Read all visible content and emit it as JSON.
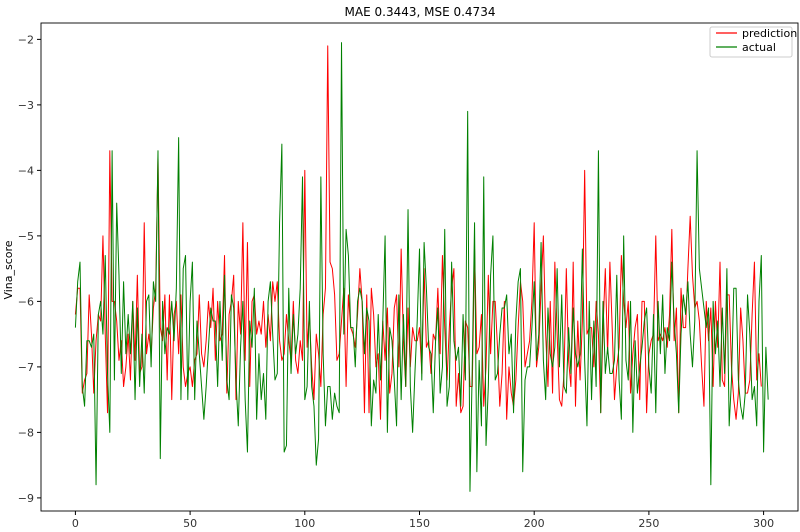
{
  "chart_data": {
    "type": "line",
    "title": "MAE 0.3443, MSE 0.4734",
    "xlabel": "",
    "ylabel": "Vina_score",
    "xlim": [
      -15,
      315
    ],
    "ylim": [
      -9.2,
      -1.75
    ],
    "x_ticks": [
      0,
      50,
      100,
      150,
      200,
      250,
      300
    ],
    "y_ticks": [
      -2,
      -3,
      -4,
      -5,
      -6,
      -7,
      -8,
      -9
    ],
    "legend_position": "top-right",
    "grid": false,
    "series": [
      {
        "name": "prediction",
        "color": "#ff0000",
        "values": [
          -6.2,
          -5.8,
          -5.8,
          -7.4,
          -7.2,
          -7.1,
          -5.9,
          -6.5,
          -7.4,
          -6.6,
          -6.2,
          -6.3,
          -5.0,
          -6.5,
          -7.7,
          -3.7,
          -6.0,
          -6.0,
          -6.3,
          -6.9,
          -6.6,
          -7.3,
          -7.0,
          -6.5,
          -7.2,
          -6.0,
          -6.9,
          -5.6,
          -7.1,
          -7.0,
          -4.8,
          -6.8,
          -6.5,
          -6.8,
          -6.1,
          -5.8,
          -3.8,
          -6.4,
          -6.6,
          -5.9,
          -7.2,
          -5.9,
          -7.5,
          -6.2,
          -6.0,
          -6.8,
          -5.9,
          -7.0,
          -7.3,
          -7.1,
          -7.0,
          -7.3,
          -6.9,
          -6.8,
          -5.9,
          -6.8,
          -7.0,
          -6.6,
          -6.0,
          -6.4,
          -5.8,
          -6.9,
          -6.0,
          -6.6,
          -6.5,
          -5.3,
          -7.4,
          -6.2,
          -6.0,
          -5.6,
          -7.5,
          -6.0,
          -6.5,
          -4.8,
          -6.9,
          -5.1,
          -7.3,
          -6.0,
          -5.9,
          -6.5,
          -6.3,
          -6.5,
          -6.0,
          -6.7,
          -6.2,
          -6.6,
          -5.7,
          -6.0,
          -5.7,
          -6.6,
          -6.9,
          -6.8,
          -6.2,
          -6.6,
          -6.9,
          -6.0,
          -6.9,
          -7.1,
          -6.6,
          -6.9,
          -4.0,
          -6.7,
          -6.2,
          -7.0,
          -7.5,
          -6.5,
          -6.8,
          -7.3,
          -6.2,
          -5.8,
          -2.1,
          -5.4,
          -5.5,
          -5.9,
          -6.9,
          -6.8,
          -6.3,
          -5.8,
          -7.3,
          -5.9,
          -6.4,
          -6.5,
          -6.7,
          -6.2,
          -5.5,
          -6.0,
          -7.7,
          -5.9,
          -7.7,
          -5.8,
          -6.2,
          -7.0,
          -6.8,
          -7.8,
          -6.3,
          -6.9,
          -6.1,
          -7.4,
          -7.1,
          -6.1,
          -5.9,
          -7.0,
          -5.2,
          -6.6,
          -7.3,
          -6.1,
          -7.0,
          -6.4,
          -6.6,
          -6.6,
          -6.4,
          -7.1,
          -5.5,
          -6.7,
          -6.6,
          -7.1,
          -6.5,
          -6.6,
          -5.8,
          -6.8,
          -5.3,
          -6.4,
          -7.2,
          -6.4,
          -5.8,
          -5.5,
          -7.6,
          -7.1,
          -7.7,
          -7.6,
          -6.3,
          -6.4,
          -7.3,
          -7.3,
          -5.2,
          -6.8,
          -6.7,
          -6.2,
          -7.6,
          -7.0,
          -5.6,
          -6.8,
          -6.0,
          -6.0,
          -6.7,
          -7.6,
          -7.1,
          -6.0,
          -7.8,
          -7.0,
          -7.4,
          -7.6,
          -7.2,
          -6.4,
          -5.7,
          -6.0,
          -7.0,
          -6.8,
          -6.6,
          -6.0,
          -4.8,
          -7.0,
          -6.7,
          -5.8,
          -5.0,
          -6.5,
          -7.3,
          -6.0,
          -7.4,
          -5.4,
          -6.5,
          -7.5,
          -7.6,
          -7.1,
          -5.5,
          -6.9,
          -7.3,
          -5.4,
          -7.6,
          -6.3,
          -7.2,
          -6.3,
          -4.0,
          -6.5,
          -6.4,
          -6.4,
          -7.0,
          -6.0,
          -6.5,
          -7.7,
          -6.4,
          -5.5,
          -6.8,
          -5.4,
          -6.4,
          -7.5,
          -7.0,
          -6.7,
          -5.3,
          -6.0,
          -6.4,
          -6.0,
          -7.4,
          -6.8,
          -6.4,
          -6.2,
          -7.5,
          -6.0,
          -6.0,
          -7.7,
          -6.8,
          -6.6,
          -6.5,
          -5.0,
          -6.6,
          -6.5,
          -6.6,
          -6.4,
          -6.7,
          -6.2,
          -4.9,
          -6.6,
          -6.1,
          -7.7,
          -5.8,
          -6.4,
          -6.4,
          -5.5,
          -4.7,
          -5.6,
          -6.1,
          -6.0,
          -6.3,
          -7.0,
          -7.6,
          -6.0,
          -6.6,
          -6.1,
          -7.3,
          -6.0,
          -6.7,
          -5.4,
          -7.2,
          -7.3,
          -5.9,
          -5.9,
          -7.0,
          -7.5,
          -7.8,
          -7.4,
          -6.1,
          -6.6,
          -7.4,
          -7.4,
          -7.2,
          -6.2,
          -5.4,
          -7.2,
          -6.8,
          -7.3
        ]
      },
      {
        "name": "actual",
        "color": "#008000",
        "values": [
          -6.4,
          -5.7,
          -5.4,
          -7.3,
          -7.6,
          -6.6,
          -6.6,
          -6.7,
          -6.5,
          -8.8,
          -6.2,
          -6.0,
          -6.5,
          -5.3,
          -7.1,
          -8.0,
          -3.7,
          -7.2,
          -4.5,
          -5.6,
          -7.1,
          -5.7,
          -6.8,
          -6.2,
          -6.8,
          -6.0,
          -7.5,
          -6.1,
          -7.3,
          -6.5,
          -7.4,
          -6.0,
          -5.9,
          -7.0,
          -5.7,
          -6.0,
          -3.7,
          -8.4,
          -6.0,
          -6.8,
          -6.4,
          -6.5,
          -6.0,
          -6.6,
          -5.8,
          -3.5,
          -7.5,
          -5.5,
          -5.3,
          -7.5,
          -6.0,
          -5.4,
          -7.5,
          -6.3,
          -6.8,
          -7.3,
          -7.8,
          -7.3,
          -6.7,
          -6.1,
          -6.3,
          -6.3,
          -7.3,
          -6.0,
          -6.9,
          -5.6,
          -7.2,
          -7.5,
          -5.9,
          -6.1,
          -7.2,
          -7.9,
          -6.7,
          -6.0,
          -7.5,
          -8.3,
          -6.3,
          -6.7,
          -5.8,
          -7.8,
          -6.8,
          -7.5,
          -7.1,
          -7.8,
          -6.0,
          -5.7,
          -6.5,
          -7.2,
          -7.1,
          -4.8,
          -3.6,
          -8.3,
          -8.2,
          -5.8,
          -7.1,
          -6.2,
          -6.8,
          -6.5,
          -5.8,
          -4.1,
          -7.5,
          -7.3,
          -6.0,
          -7.3,
          -7.6,
          -8.5,
          -8.1,
          -4.1,
          -6.8,
          -7.9,
          -7.3,
          -7.3,
          -7.8,
          -7.4,
          -7.6,
          -7.7,
          -2.05,
          -6.5,
          -4.9,
          -5.3,
          -6.4,
          -6.4,
          -7.0,
          -6.0,
          -5.8,
          -6.0,
          -6.8,
          -6.1,
          -6.3,
          -7.9,
          -7.2,
          -7.4,
          -6.2,
          -7.2,
          -6.3,
          -5.0,
          -8.0,
          -6.4,
          -6.6,
          -7.2,
          -7.9,
          -5.9,
          -7.5,
          -6.2,
          -7.3,
          -4.6,
          -7.3,
          -8.0,
          -7.1,
          -6.3,
          -5.2,
          -7.2,
          -5.1,
          -5.8,
          -6.7,
          -6.8,
          -7.7,
          -6.6,
          -6.1,
          -7.4,
          -7.0,
          -4.9,
          -7.6,
          -7.3,
          -5.4,
          -6.6,
          -6.9,
          -6.7,
          -7.6,
          -6.2,
          -7.2,
          -3.1,
          -8.9,
          -7.0,
          -4.8,
          -8.6,
          -6.9,
          -7.9,
          -4.1,
          -8.2,
          -7.3,
          -5.6,
          -5.0,
          -7.2,
          -7.1,
          -6.5,
          -6.1,
          -6.1,
          -5.9,
          -6.8,
          -6.5,
          -7.7,
          -6.3,
          -5.7,
          -5.5,
          -8.6,
          -7.2,
          -7.0,
          -7.0,
          -6.4,
          -5.7,
          -6.9,
          -6.5,
          -5.1,
          -6.9,
          -7.5,
          -6.1,
          -6.8,
          -7.0,
          -6.7,
          -5.5,
          -7.0,
          -5.9,
          -7.3,
          -7.4,
          -6.4,
          -7.1,
          -6.1,
          -6.8,
          -7.0,
          -6.8,
          -5.2,
          -6.9,
          -7.9,
          -6.0,
          -7.5,
          -6.3,
          -7.3,
          -3.7,
          -7.7,
          -6.0,
          -7.1,
          -6.7,
          -7.1,
          -7.1,
          -6.9,
          -5.6,
          -7.2,
          -7.8,
          -5.0,
          -6.9,
          -7.2,
          -6.0,
          -8.0,
          -6.6,
          -7.4,
          -7.0,
          -6.7,
          -6.3,
          -6.1,
          -7.0,
          -7.4,
          -6.2,
          -7.7,
          -6.0,
          -6.8,
          -5.9,
          -7.1,
          -6.4,
          -6.6,
          -5.4,
          -6.3,
          -6.8,
          -7.7,
          -6.5,
          -5.9,
          -6.2,
          -5.7,
          -6.5,
          -7.0,
          -6.3,
          -3.7,
          -5.5,
          -5.8,
          -6.1,
          -6.4,
          -6.1,
          -8.8,
          -6.0,
          -6.8,
          -6.3,
          -7.3,
          -6.1,
          -7.1,
          -5.5,
          -7.9,
          -7.2,
          -5.8,
          -5.8,
          -7.2,
          -7.6,
          -7.8,
          -7.4,
          -5.9,
          -6.5,
          -7.5,
          -7.3,
          -7.9,
          -6.0,
          -5.3,
          -8.3,
          -6.7,
          -7.5
        ]
      }
    ]
  }
}
